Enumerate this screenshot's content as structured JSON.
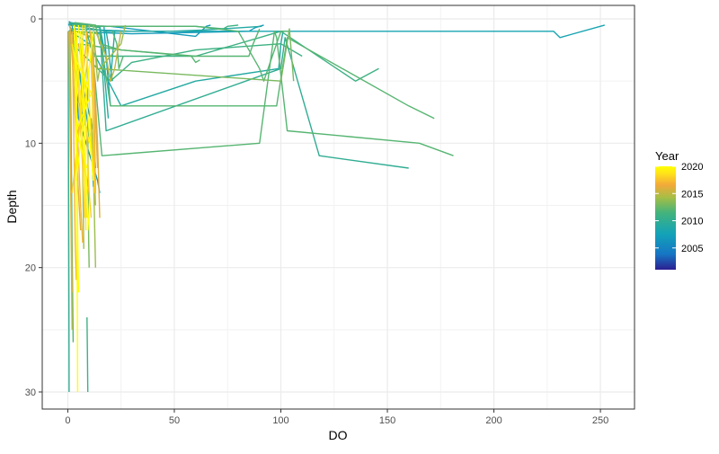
{
  "chart_data": {
    "type": "line",
    "title": "",
    "xlabel": "DO",
    "ylabel": "Depth",
    "xlim": [
      -12,
      266
    ],
    "ylim": [
      0,
      31
    ],
    "y_reversed": true,
    "x_ticks": [
      0,
      50,
      100,
      150,
      200,
      250
    ],
    "x_tick_labels": [
      "0",
      "50",
      "100",
      "150",
      "200",
      "250"
    ],
    "y_ticks": [
      0,
      10,
      20,
      30
    ],
    "y_tick_labels": [
      "0",
      "10",
      "20",
      "30"
    ],
    "grid": true,
    "legend": {
      "title": "Year",
      "position": "right",
      "min": 2001,
      "max": 2020,
      "tick_values": [
        2005,
        2010,
        2015,
        2020
      ],
      "tick_labels": [
        "2005",
        "2010",
        "2015",
        "2020"
      ],
      "colors": [
        "#2b1f91",
        "#1676c4",
        "#13a3b8",
        "#43b37c",
        "#a6be45",
        "#f3a93a",
        "#ffe21a",
        "#ffff00"
      ]
    },
    "series": [
      {
        "year": 2008,
        "x": [
          0.5,
          2,
          30,
          50,
          60,
          228,
          231,
          252
        ],
        "y": [
          1,
          0.8,
          1,
          1,
          1,
          1,
          1.5,
          0.5
        ]
      },
      {
        "year": 2007,
        "x": [
          1,
          20,
          60,
          65,
          67
        ],
        "y": [
          0.5,
          0.6,
          1.4,
          0.6,
          0.5
        ]
      },
      {
        "year": 2009,
        "x": [
          0.5,
          5,
          18,
          48,
          63,
          91
        ],
        "y": [
          0.5,
          0.6,
          1,
          1,
          0.9,
          0.6
        ]
      },
      {
        "year": 2011,
        "x": [
          0.5,
          8,
          12,
          60,
          90,
          100,
          135,
          146
        ],
        "y": [
          0.3,
          0.5,
          3,
          3,
          1.5,
          1,
          5,
          4
        ]
      },
      {
        "year": 2012,
        "x": [
          2,
          15,
          20,
          98,
          103,
          160,
          172
        ],
        "y": [
          1,
          1.2,
          7,
          7,
          1.5,
          7,
          8
        ]
      },
      {
        "year": 2012,
        "x": [
          3,
          13,
          15,
          25,
          58,
          60,
          62
        ],
        "y": [
          0.3,
          0.5,
          2,
          2.5,
          3,
          3.5,
          3.3
        ]
      },
      {
        "year": 2012,
        "x": [
          4,
          11,
          16,
          90,
          97,
          98,
          103,
          165,
          181
        ],
        "y": [
          1,
          1.5,
          11,
          10,
          1,
          1.5,
          9,
          10,
          11
        ]
      },
      {
        "year": 2010,
        "x": [
          3,
          15,
          18,
          100,
          102,
          118,
          160
        ],
        "y": [
          0.4,
          0.7,
          9,
          4,
          1.5,
          11,
          12
        ]
      },
      {
        "year": 2011,
        "x": [
          4,
          22,
          60,
          73,
          75,
          80
        ],
        "y": [
          0.6,
          0.6,
          0.6,
          0.8,
          0.6,
          0.5
        ]
      },
      {
        "year": 2012,
        "x": [
          2,
          20,
          40,
          60,
          80,
          90,
          92,
          100,
          104
        ],
        "y": [
          0.5,
          0.6,
          0.6,
          0.6,
          1,
          4,
          5,
          1,
          1
        ]
      },
      {
        "year": 2012,
        "x": [
          5,
          25,
          60,
          85,
          87,
          90
        ],
        "y": [
          2,
          2.5,
          3,
          3,
          2,
          0.8
        ]
      },
      {
        "year": 2009,
        "x": [
          1,
          10,
          25,
          60,
          99,
          100,
          101,
          102
        ],
        "y": [
          1,
          2,
          7,
          5,
          4,
          2,
          1,
          1
        ]
      },
      {
        "year": 2011,
        "x": [
          2,
          20,
          30,
          60,
          100,
          110
        ],
        "y": [
          2,
          5,
          3.5,
          2.5,
          2,
          3
        ]
      },
      {
        "year": 2013,
        "x": [
          1,
          12,
          14,
          100,
          104,
          106
        ],
        "y": [
          0.8,
          1.5,
          4,
          5,
          0.8,
          5
        ]
      },
      {
        "year": 2007,
        "x": [
          1,
          15,
          30,
          85,
          88,
          92
        ],
        "y": [
          1,
          1.1,
          1.2,
          1,
          0.7,
          0.5
        ]
      },
      {
        "year": 2009,
        "x": [
          0.5,
          5,
          15,
          20,
          21,
          22
        ],
        "y": [
          0.4,
          0.5,
          0.6,
          5,
          3,
          1
        ]
      },
      {
        "year": 2006,
        "x": [
          0.5,
          2,
          3,
          5,
          14,
          15
        ],
        "y": [
          0.3,
          0.4,
          3,
          8,
          13,
          14
        ]
      },
      {
        "year": 2005,
        "x": [
          0.5,
          3,
          5,
          12,
          13
        ],
        "y": [
          0.2,
          0.5,
          4,
          9,
          12
        ]
      },
      {
        "year": 2007,
        "x": [
          0.3,
          2,
          4,
          11,
          12
        ],
        "y": [
          0.4,
          1,
          6,
          10,
          13.5
        ]
      },
      {
        "year": 2008,
        "x": [
          0.8,
          3,
          7,
          10,
          12,
          13
        ],
        "y": [
          0.5,
          2,
          6,
          9,
          12,
          13
        ]
      },
      {
        "year": 2010,
        "x": [
          0.2,
          0.3,
          0.5,
          0.6
        ],
        "y": [
          1,
          10,
          20,
          30
        ]
      },
      {
        "year": 2012,
        "x": [
          1,
          1.5,
          2,
          2.5
        ],
        "y": [
          1,
          8,
          18,
          26
        ]
      },
      {
        "year": 2013,
        "x": [
          9,
          9.3,
          9.5,
          9.8,
          10
        ],
        "y": [
          1,
          6,
          12,
          18,
          20
        ]
      },
      {
        "year": 2011,
        "x": [
          9,
          9.2,
          9.4
        ],
        "y": [
          24,
          27,
          30
        ]
      },
      {
        "year": 2014,
        "x": [
          6,
          6.5,
          7,
          7.5
        ],
        "y": [
          2,
          6,
          12,
          18.5
        ]
      },
      {
        "year": 2016,
        "x": [
          1,
          2,
          3,
          4,
          5,
          6
        ],
        "y": [
          0.5,
          3,
          6,
          10,
          14,
          17
        ]
      },
      {
        "year": 2017,
        "x": [
          2,
          3,
          4,
          5,
          6,
          7
        ],
        "y": [
          1,
          4,
          7,
          11,
          15,
          18
        ]
      },
      {
        "year": 2018,
        "x": [
          3,
          4,
          5,
          6,
          7,
          8
        ],
        "y": [
          0.5,
          3,
          6,
          9,
          12,
          16
        ]
      },
      {
        "year": 2019,
        "x": [
          4,
          5,
          6,
          7,
          8,
          9
        ],
        "y": [
          1,
          4,
          7,
          10,
          13,
          16
        ]
      },
      {
        "year": 2020,
        "x": [
          4,
          4.2,
          4.3,
          4.5,
          4.6
        ],
        "y": [
          1,
          8,
          16,
          24,
          30
        ]
      },
      {
        "year": 2020,
        "x": [
          5,
          6,
          7,
          8,
          9,
          10
        ],
        "y": [
          0.5,
          3,
          6,
          10,
          14,
          17
        ]
      },
      {
        "year": 2019,
        "x": [
          8,
          9,
          10,
          11,
          12
        ],
        "y": [
          0.5,
          3,
          6,
          10,
          13
        ]
      },
      {
        "year": 2018,
        "x": [
          6,
          7,
          8,
          9,
          10,
          11
        ],
        "y": [
          1,
          4,
          7,
          10,
          14,
          16
        ]
      },
      {
        "year": 2016,
        "x": [
          10,
          11,
          12,
          13,
          14
        ],
        "y": [
          0.5,
          2,
          5,
          8,
          12
        ]
      },
      {
        "year": 2017,
        "x": [
          2,
          2.5,
          3,
          3.5,
          4
        ],
        "y": [
          1,
          6,
          12,
          18,
          21
        ]
      },
      {
        "year": 2015,
        "x": [
          1,
          1.2,
          1.5,
          2
        ],
        "y": [
          1,
          8,
          16,
          25
        ]
      },
      {
        "year": 2020,
        "x": [
          3,
          3.5,
          4,
          4.5,
          5
        ],
        "y": [
          0.5,
          5,
          10,
          15,
          22
        ]
      },
      {
        "year": 2019,
        "x": [
          7,
          7.5,
          8,
          8.5
        ],
        "y": [
          0.5,
          6,
          12,
          17
        ]
      },
      {
        "year": 2018,
        "x": [
          11,
          11.5,
          12,
          12.5
        ],
        "y": [
          1,
          5,
          10,
          14
        ]
      },
      {
        "year": 2016,
        "x": [
          0.5,
          1,
          1.5,
          2
        ],
        "y": [
          1,
          7,
          14,
          22
        ]
      },
      {
        "year": 2017,
        "x": [
          12,
          12.5,
          13
        ],
        "y": [
          2,
          8,
          14
        ]
      },
      {
        "year": 2020,
        "x": [
          6,
          7,
          8,
          9,
          10,
          11,
          12
        ],
        "y": [
          1,
          3,
          5,
          7,
          9,
          11,
          13
        ]
      },
      {
        "year": 2019,
        "x": [
          2,
          4,
          6,
          8,
          10
        ],
        "y": [
          2,
          4,
          6,
          8,
          10
        ]
      },
      {
        "year": 2018,
        "x": [
          10,
          8,
          6,
          4,
          2
        ],
        "y": [
          2,
          5,
          8,
          11,
          14
        ]
      },
      {
        "year": 2020,
        "x": [
          12,
          10,
          8,
          6,
          4
        ],
        "y": [
          1,
          4,
          7,
          10,
          13
        ]
      },
      {
        "year": 2017,
        "x": [
          9,
          7,
          5,
          3
        ],
        "y": [
          1,
          5,
          9,
          13
        ]
      },
      {
        "year": 2016,
        "x": [
          5,
          9,
          6,
          10
        ],
        "y": [
          2,
          6,
          10,
          14
        ]
      },
      {
        "year": 2020,
        "x": [
          3,
          11,
          4,
          9
        ],
        "y": [
          3,
          6,
          9,
          12
        ]
      },
      {
        "year": 2015,
        "x": [
          11,
          12,
          13
        ],
        "y": [
          3,
          9,
          15
        ]
      },
      {
        "year": 2014,
        "x": [
          12,
          13,
          14,
          15,
          25,
          27
        ],
        "y": [
          0.5,
          3,
          5,
          4,
          2,
          0.5
        ]
      },
      {
        "year": 2015,
        "x": [
          13,
          18,
          20,
          22,
          24,
          25
        ],
        "y": [
          1,
          3,
          5,
          4,
          2,
          1
        ]
      },
      {
        "year": 2016,
        "x": [
          12,
          14,
          15
        ],
        "y": [
          3,
          10,
          16
        ]
      },
      {
        "year": 2014,
        "x": [
          11,
          12,
          12.5,
          13
        ],
        "y": [
          8,
          12,
          16,
          20
        ]
      },
      {
        "year": 2009,
        "x": [
          15,
          16,
          17,
          18,
          19
        ],
        "y": [
          0.6,
          2,
          4,
          6,
          8
        ]
      },
      {
        "year": 2008,
        "x": [
          17,
          18,
          19,
          20
        ],
        "y": [
          0.6,
          3,
          5,
          7
        ]
      },
      {
        "year": 2009,
        "x": [
          18,
          19,
          20,
          21
        ],
        "y": [
          1,
          2,
          4,
          5
        ]
      },
      {
        "year": 2012,
        "x": [
          21,
          23,
          24,
          26
        ],
        "y": [
          1,
          2,
          4,
          3
        ]
      },
      {
        "year": 2005,
        "x": [
          1,
          5,
          10,
          12
        ],
        "y": [
          0.3,
          0.4,
          0.5,
          0.6
        ]
      }
    ]
  }
}
